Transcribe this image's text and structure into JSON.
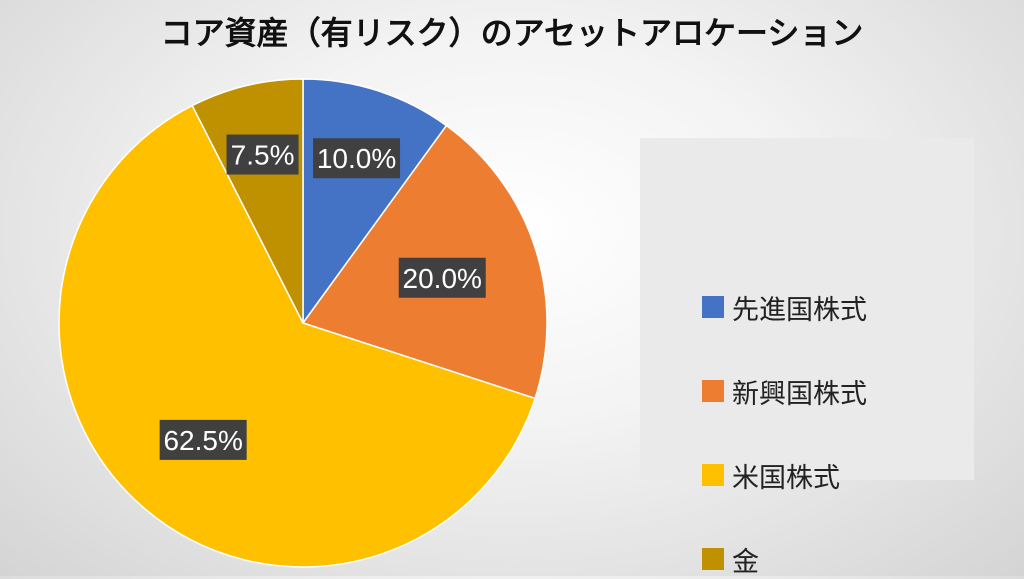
{
  "chart_data": {
    "type": "pie",
    "title": "コア資産（有リスク）のアセットアロケーション",
    "legend_position": "right",
    "slices": [
      {
        "label": "先進国株式",
        "value": 10.0,
        "value_label": "10.0%",
        "color": "#4472C4"
      },
      {
        "label": "新興国株式",
        "value": 20.0,
        "value_label": "20.0%",
        "color": "#ED7D31"
      },
      {
        "label": "米国株式",
        "value": 62.5,
        "value_label": "62.5%",
        "color": "#FFC000"
      },
      {
        "label": "金",
        "value": 7.5,
        "value_label": "7.5%",
        "color": "#BF9000"
      }
    ]
  }
}
